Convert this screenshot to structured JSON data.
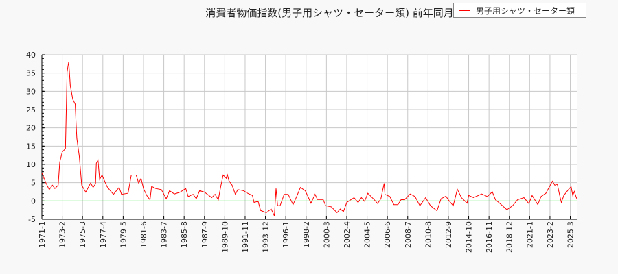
{
  "chart_data": {
    "type": "line",
    "title": "消費者物価指数(男子用シャツ・セーター類) 前年同月比（",
    "xlabel": "",
    "ylabel": "",
    "ylim": [
      -5,
      40
    ],
    "yticks": [
      "-5",
      "0",
      "5",
      "10",
      "15",
      "20",
      "25",
      "30",
      "35",
      "40"
    ],
    "xlim": [
      "1971-1",
      "2025-11"
    ],
    "xticks": [
      "1971-1",
      "1973-2",
      "1975-3",
      "1977-4",
      "1979-5",
      "1981-6",
      "1983-7",
      "1985-8",
      "1987-9",
      "1989-10",
      "1991-11",
      "1993-12",
      "1996-1",
      "1998-2",
      "2000-3",
      "2002-4",
      "2004-5",
      "2006-6",
      "2008-7",
      "2010-8",
      "2012-9",
      "2014-10",
      "2016-11",
      "2018-12",
      "2021-1",
      "2023-2",
      "2025-3"
    ],
    "grid": true,
    "zero_line_color": "#00e000",
    "legend_position": "top-right",
    "series": [
      {
        "name": "男子用シャツ・セーター類",
        "color": "#ff0000",
        "points": [
          [
            "1971-1",
            7.7
          ],
          [
            "1971-6",
            4.9
          ],
          [
            "1971-10",
            3.1
          ],
          [
            "1972-2",
            4.3
          ],
          [
            "1972-5",
            3.4
          ],
          [
            "1972-9",
            4.3
          ],
          [
            "1972-11",
            10.6
          ],
          [
            "1973-2",
            13.4
          ],
          [
            "1973-6",
            14.3
          ],
          [
            "1973-7",
            24.6
          ],
          [
            "1973-8",
            35.3
          ],
          [
            "1973-10",
            38.1
          ],
          [
            "1973-12",
            31.5
          ],
          [
            "1974-3",
            27.8
          ],
          [
            "1974-6",
            26.5
          ],
          [
            "1974-7",
            21.6
          ],
          [
            "1974-8",
            17.1
          ],
          [
            "1974-11",
            12.2
          ],
          [
            "1975-2",
            4.3
          ],
          [
            "1975-7",
            2.4
          ],
          [
            "1976-1",
            4.9
          ],
          [
            "1976-4",
            3.7
          ],
          [
            "1976-7",
            4.7
          ],
          [
            "1976-8",
            10.3
          ],
          [
            "1976-10",
            11.2
          ],
          [
            "1976-12",
            5.9
          ],
          [
            "1977-3",
            7.1
          ],
          [
            "1977-9",
            4.0
          ],
          [
            "1977-12",
            3.1
          ],
          [
            "1978-5",
            1.8
          ],
          [
            "1978-12",
            3.7
          ],
          [
            "1979-3",
            1.8
          ],
          [
            "1979-11",
            2.1
          ],
          [
            "1980-3",
            7.1
          ],
          [
            "1980-9",
            7.1
          ],
          [
            "1980-12",
            4.9
          ],
          [
            "1981-3",
            6.2
          ],
          [
            "1981-6",
            3.4
          ],
          [
            "1981-10",
            1.5
          ],
          [
            "1982-2",
            0.3
          ],
          [
            "1982-4",
            4.0
          ],
          [
            "1982-9",
            3.4
          ],
          [
            "1983-4",
            3.1
          ],
          [
            "1983-10",
            0.6
          ],
          [
            "1984-2",
            2.8
          ],
          [
            "1984-8",
            1.9
          ],
          [
            "1985-3",
            2.4
          ],
          [
            "1985-10",
            3.4
          ],
          [
            "1986-1",
            1.2
          ],
          [
            "1986-7",
            1.8
          ],
          [
            "1986-11",
            0.6
          ],
          [
            "1987-3",
            2.8
          ],
          [
            "1987-9",
            2.4
          ],
          [
            "1988-6",
            0.9
          ],
          [
            "1988-10",
            1.8
          ],
          [
            "1989-2",
            0.3
          ],
          [
            "1989-5",
            4.0
          ],
          [
            "1989-8",
            7.1
          ],
          [
            "1989-12",
            6.2
          ],
          [
            "1990-1",
            7.4
          ],
          [
            "1990-3",
            5.6
          ],
          [
            "1990-7",
            4.3
          ],
          [
            "1990-11",
            1.8
          ],
          [
            "1991-2",
            3.1
          ],
          [
            "1991-9",
            2.8
          ],
          [
            "1992-2",
            2.1
          ],
          [
            "1992-8",
            1.5
          ],
          [
            "1992-10",
            -0.4
          ],
          [
            "1993-3",
            -0.1
          ],
          [
            "1993-6",
            -2.6
          ],
          [
            "1994-1",
            -3.2
          ],
          [
            "1994-7",
            -2.2
          ],
          [
            "1994-11",
            -4.1
          ],
          [
            "1995-1",
            3.4
          ],
          [
            "1995-3",
            -1.3
          ],
          [
            "1995-6",
            -1.3
          ],
          [
            "1995-11",
            1.8
          ],
          [
            "1996-4",
            1.8
          ],
          [
            "1996-10",
            -1.0
          ],
          [
            "1997-3",
            1.5
          ],
          [
            "1997-7",
            3.7
          ],
          [
            "1998-1",
            2.8
          ],
          [
            "1998-8",
            -0.6
          ],
          [
            "1999-1",
            1.8
          ],
          [
            "1999-4",
            0.4
          ],
          [
            "1999-11",
            0.4
          ],
          [
            "2000-2",
            -1.3
          ],
          [
            "2000-9",
            -1.6
          ],
          [
            "2001-4",
            -3.2
          ],
          [
            "2001-8",
            -2.2
          ],
          [
            "2001-12",
            -2.9
          ],
          [
            "2002-4",
            -0.4
          ],
          [
            "2003-1",
            0.9
          ],
          [
            "2003-6",
            -0.4
          ],
          [
            "2003-10",
            0.9
          ],
          [
            "2004-2",
            -0.1
          ],
          [
            "2004-6",
            2.1
          ],
          [
            "2005-2",
            0.3
          ],
          [
            "2005-6",
            -0.7
          ],
          [
            "2005-10",
            0.6
          ],
          [
            "2006-2",
            4.8
          ],
          [
            "2006-3",
            1.8
          ],
          [
            "2006-9",
            1.2
          ],
          [
            "2007-2",
            -1.0
          ],
          [
            "2007-7",
            -1.0
          ],
          [
            "2007-11",
            0.4
          ],
          [
            "2008-3",
            0.3
          ],
          [
            "2008-10",
            1.9
          ],
          [
            "2009-4",
            1.2
          ],
          [
            "2009-10",
            -1.3
          ],
          [
            "2010-5",
            0.9
          ],
          [
            "2010-11",
            -1.3
          ],
          [
            "2011-7",
            -2.7
          ],
          [
            "2011-12",
            0.6
          ],
          [
            "2012-6",
            1.3
          ],
          [
            "2012-9",
            0.3
          ],
          [
            "2013-3",
            -1.3
          ],
          [
            "2013-8",
            3.2
          ],
          [
            "2014-1",
            0.9
          ],
          [
            "2014-8",
            -0.6
          ],
          [
            "2014-10",
            1.5
          ],
          [
            "2015-4",
            0.9
          ],
          [
            "2016-2",
            1.9
          ],
          [
            "2016-9",
            1.2
          ],
          [
            "2017-3",
            2.5
          ],
          [
            "2017-7",
            0.3
          ],
          [
            "2017-12",
            -0.6
          ],
          [
            "2018-9",
            -2.4
          ],
          [
            "2019-4",
            -1.3
          ],
          [
            "2019-10",
            0.3
          ],
          [
            "2020-6",
            0.9
          ],
          [
            "2020-12",
            -0.7
          ],
          [
            "2021-4",
            1.5
          ],
          [
            "2021-11",
            -1.0
          ],
          [
            "2022-3",
            1.2
          ],
          [
            "2022-9",
            2.1
          ],
          [
            "2023-5",
            5.4
          ],
          [
            "2023-8",
            4.3
          ],
          [
            "2023-11",
            4.6
          ],
          [
            "2024-2",
            1.5
          ],
          [
            "2024-4",
            -0.4
          ],
          [
            "2024-7",
            1.5
          ],
          [
            "2025-1",
            3.2
          ],
          [
            "2025-4",
            3.9
          ],
          [
            "2025-6",
            1.5
          ],
          [
            "2025-8",
            2.6
          ],
          [
            "2025-10",
            1.2
          ],
          [
            "2025-11",
            0.6
          ]
        ]
      }
    ]
  }
}
